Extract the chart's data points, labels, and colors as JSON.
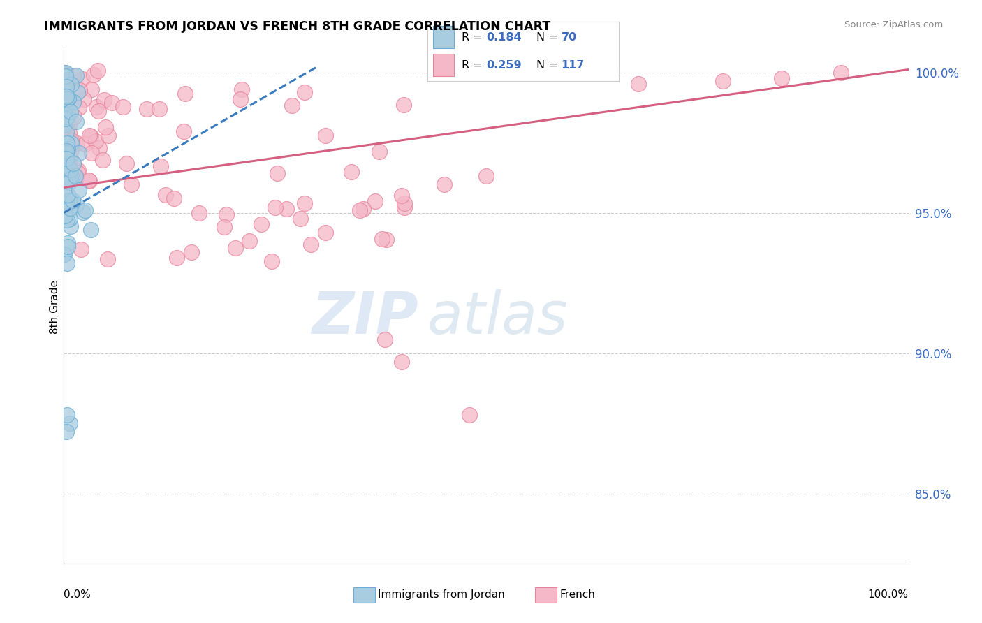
{
  "title": "IMMIGRANTS FROM JORDAN VS FRENCH 8TH GRADE CORRELATION CHART",
  "source_text": "Source: ZipAtlas.com",
  "ylabel": "8th Grade",
  "r1": 0.184,
  "n1": 70,
  "r2": 0.259,
  "n2": 117,
  "color_blue": "#a8cce0",
  "color_pink": "#f4b8c8",
  "color_blue_edge": "#6aaed6",
  "color_pink_edge": "#e8849a",
  "color_blue_line": "#3a7abf",
  "color_pink_line": "#d45f80",
  "xlim": [
    0.0,
    1.0
  ],
  "ylim": [
    0.825,
    1.008
  ],
  "yticks": [
    0.85,
    0.9,
    0.95,
    1.0
  ],
  "ytick_labels": [
    "85.0%",
    "90.0%",
    "95.0%",
    "100.0%"
  ],
  "blue_line_x": [
    0.0,
    0.3
  ],
  "blue_line_y": [
    0.95,
    1.002
  ],
  "pink_line_x": [
    0.0,
    1.0
  ],
  "pink_line_y": [
    0.959,
    1.001
  ],
  "watermark_zip": "ZIP",
  "watermark_atlas": "atlas",
  "legend_r1_label": "R = ",
  "legend_r1_val": "0.184",
  "legend_n1_label": "N = ",
  "legend_n1_val": "70",
  "legend_r2_label": "R = ",
  "legend_r2_val": "0.259",
  "legend_n2_label": "N = ",
  "legend_n2_val": "117",
  "bottom_label1": "Immigrants from Jordan",
  "bottom_label2": "French"
}
